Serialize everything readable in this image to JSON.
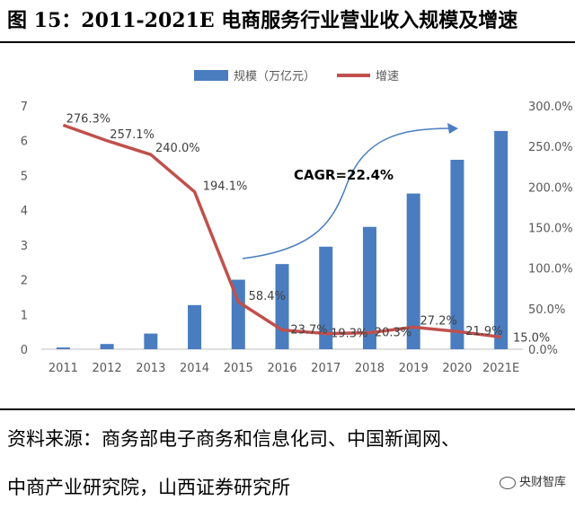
{
  "header": {
    "title": "图 15：2011-2021E 电商服务行业营业收入规模及增速"
  },
  "chart_data": {
    "type": "bar+line",
    "categories": [
      "2011",
      "2012",
      "2013",
      "2014",
      "2015",
      "2016",
      "2017",
      "2018",
      "2019",
      "2020",
      "2021E"
    ],
    "series": [
      {
        "name": "规模（万亿元）",
        "type": "bar",
        "axis": "left",
        "color": "#4a7dbf",
        "values": [
          0.05,
          0.15,
          0.45,
          1.27,
          2.0,
          2.45,
          2.95,
          3.52,
          4.48,
          5.45,
          6.28
        ]
      },
      {
        "name": "增速",
        "type": "line",
        "axis": "right",
        "color": "#c0504d",
        "values": [
          276.3,
          257.1,
          240.0,
          194.1,
          58.4,
          23.7,
          19.3,
          20.3,
          27.2,
          21.9,
          15.0
        ],
        "labels": [
          "276.3%",
          "257.1%",
          "240.0%",
          "194.1%",
          "58.4%",
          "23.7%",
          "19.3%",
          "20.3%",
          "27.2%",
          "21.9%",
          "15.0%"
        ]
      }
    ],
    "y_left": {
      "min": 0,
      "max": 7,
      "ticks": [
        "0",
        "1",
        "2",
        "3",
        "4",
        "5",
        "6",
        "7"
      ]
    },
    "y_right": {
      "min": 0,
      "max": 300,
      "ticks": [
        "0.0%",
        "50.0%",
        "100.0%",
        "150.0%",
        "200.0%",
        "250.0%",
        "300.0%"
      ]
    },
    "annotation": {
      "text": "CAGR=22.4%",
      "arrow_color": "#4a7dbf"
    },
    "legend_position": "top",
    "grid": false
  },
  "footer": {
    "source_line1": "资料来源：商务部电子商务和信息化司、中国新闻网、",
    "source_line2": "中商产业研究院，山西证券研究所",
    "watermark": "央财智库"
  }
}
